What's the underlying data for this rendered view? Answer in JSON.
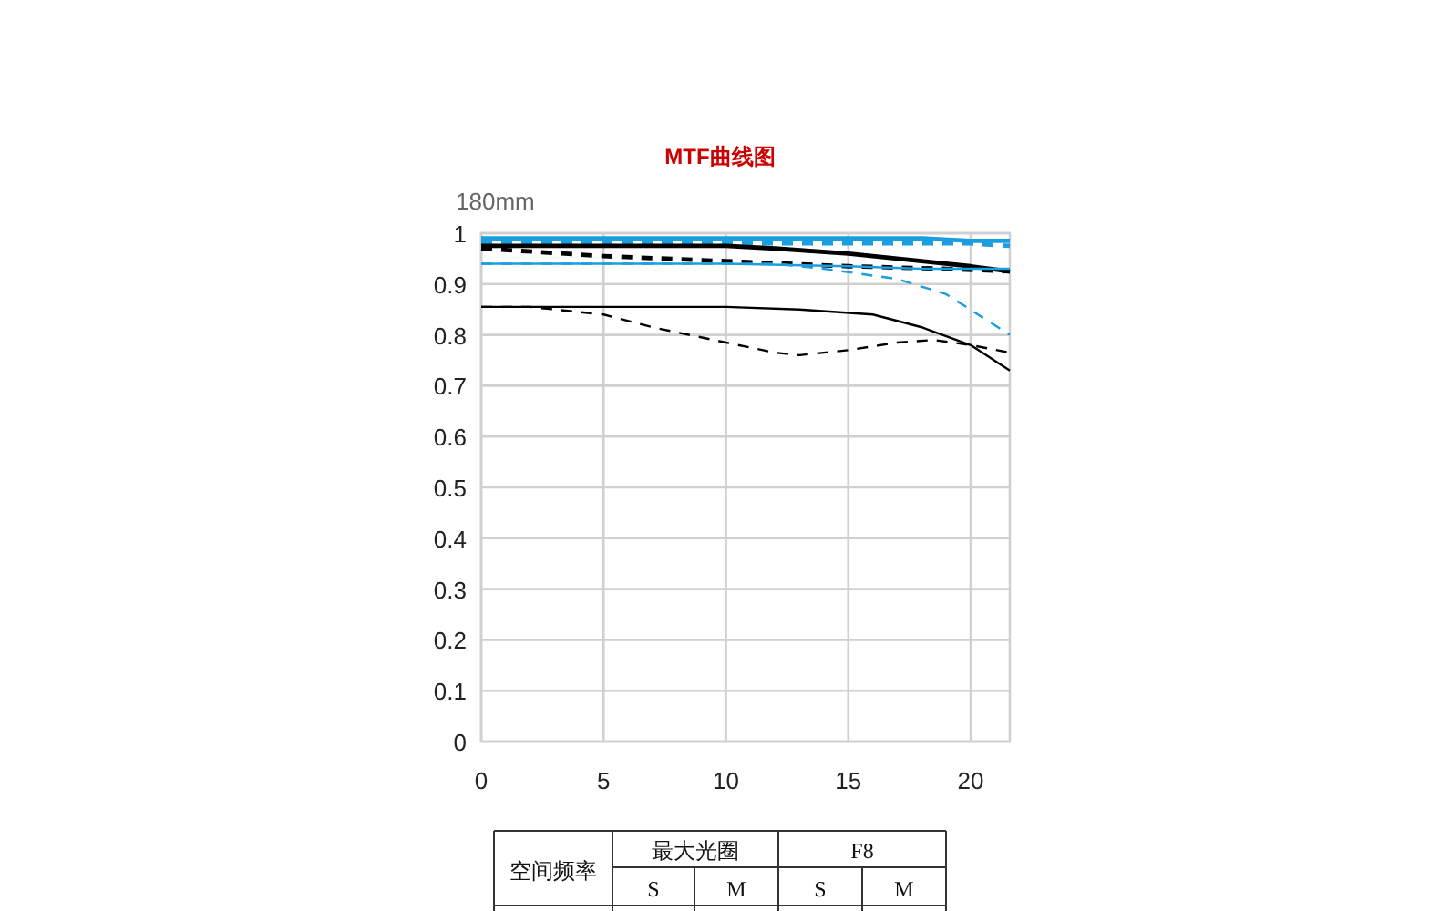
{
  "chart_data": {
    "type": "line",
    "title": "MTF曲线图",
    "ylabel": "180mm",
    "xlim": [
      0,
      21.6
    ],
    "xticks": [
      0,
      5,
      10,
      15,
      20
    ],
    "ylim": [
      0,
      1
    ],
    "yticks": [
      0,
      0.1,
      0.2,
      0.3,
      0.4,
      0.5,
      0.6,
      0.7,
      0.8,
      0.9,
      1
    ],
    "grid": true,
    "marker": "none",
    "series": [
      {
        "color": "#1a9ee0",
        "line_style": "solid",
        "x": [
          0,
          5,
          10,
          15,
          18,
          20,
          21.6
        ],
        "values": [
          0.99,
          0.99,
          0.99,
          0.99,
          0.99,
          0.985,
          0.985
        ]
      },
      {
        "color": "#1a9ee0",
        "line_style": "dashed",
        "x": [
          0,
          5,
          10,
          15,
          18,
          20,
          21.6
        ],
        "values": [
          0.98,
          0.98,
          0.98,
          0.98,
          0.98,
          0.98,
          0.975
        ]
      },
      {
        "color": "#000000",
        "line_style": "solid",
        "x": [
          0,
          5,
          10,
          12,
          15,
          18,
          20,
          21.6
        ],
        "values": [
          0.975,
          0.975,
          0.975,
          0.97,
          0.96,
          0.945,
          0.935,
          0.925
        ]
      },
      {
        "color": "#000000",
        "line_style": "dashed",
        "x": [
          0,
          5,
          10,
          15,
          19,
          21.6
        ],
        "values": [
          0.97,
          0.955,
          0.945,
          0.935,
          0.93,
          0.925
        ]
      },
      {
        "color": "#1a9ee0",
        "line_style": "solid",
        "x": [
          0,
          5,
          10,
          15,
          18,
          21.6
        ],
        "values": [
          0.94,
          0.94,
          0.94,
          0.935,
          0.93,
          0.93
        ]
      },
      {
        "color": "#1a9ee0",
        "line_style": "dashed",
        "x": [
          0,
          5,
          10,
          12,
          14,
          17,
          19,
          21.6
        ],
        "values": [
          0.94,
          0.94,
          0.94,
          0.94,
          0.93,
          0.91,
          0.88,
          0.8
        ]
      },
      {
        "color": "#000000",
        "line_style": "solid",
        "x": [
          0,
          5,
          10,
          13,
          16,
          18,
          20,
          21.6
        ],
        "values": [
          0.855,
          0.855,
          0.855,
          0.85,
          0.84,
          0.815,
          0.78,
          0.73
        ]
      },
      {
        "color": "#000000",
        "line_style": "dashed",
        "x": [
          0,
          2,
          5,
          7,
          10,
          12,
          13,
          15,
          17,
          18.5,
          20,
          21.6
        ],
        "values": [
          0.855,
          0.855,
          0.84,
          0.815,
          0.785,
          0.765,
          0.76,
          0.77,
          0.785,
          0.79,
          0.78,
          0.765
        ]
      }
    ],
    "annotations": [
      "空间频率",
      "最大光圈",
      "F8",
      "S",
      "M",
      "S",
      "M"
    ]
  }
}
